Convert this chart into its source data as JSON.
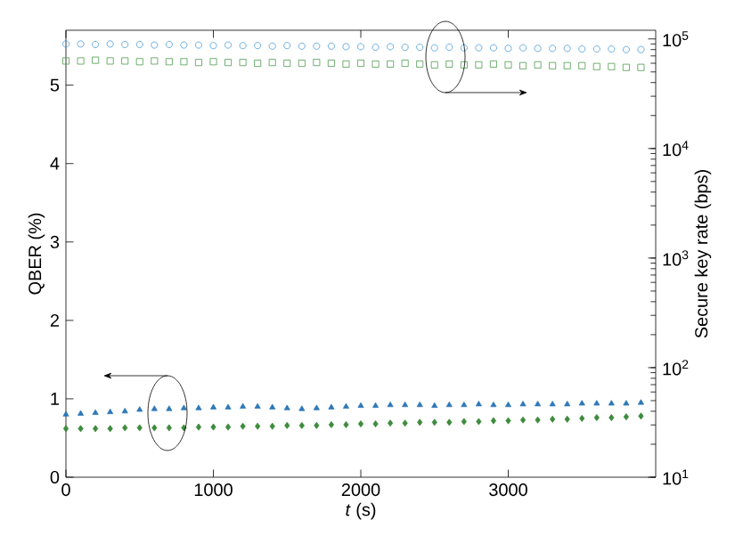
{
  "chart_data": {
    "type": "scatter",
    "xlabel": "*t* (s)",
    "ylabel": "QBER (%)",
    "y2label": "Secure key rate (bps)",
    "x": [
      0,
      100,
      200,
      300,
      400,
      500,
      600,
      700,
      800,
      900,
      1000,
      1100,
      1200,
      1300,
      1400,
      1500,
      1600,
      1700,
      1800,
      1900,
      2000,
      2100,
      2200,
      2300,
      2400,
      2500,
      2600,
      2700,
      2800,
      2900,
      3000,
      3100,
      3200,
      3300,
      3400,
      3500,
      3600,
      3700,
      3800,
      3900
    ],
    "series": [
      {
        "color": "#2e78b8",
        "marker": "triangle",
        "values": [
          0.8,
          0.81,
          0.82,
          0.83,
          0.84,
          0.86,
          0.87,
          0.87,
          0.88,
          0.88,
          0.89,
          0.89,
          0.9,
          0.9,
          0.89,
          0.88,
          0.87,
          0.88,
          0.89,
          0.9,
          0.91,
          0.91,
          0.92,
          0.92,
          0.92,
          0.91,
          0.92,
          0.92,
          0.93,
          0.92,
          0.92,
          0.93,
          0.93,
          0.93,
          0.93,
          0.94,
          0.94,
          0.94,
          0.94,
          0.95
        ]
      },
      {
        "color": "#3d8c3d",
        "marker": "diamond",
        "values": [
          0.62,
          0.62,
          0.62,
          0.62,
          0.63,
          0.63,
          0.63,
          0.63,
          0.63,
          0.64,
          0.64,
          0.64,
          0.65,
          0.65,
          0.65,
          0.66,
          0.66,
          0.66,
          0.67,
          0.67,
          0.68,
          0.68,
          0.69,
          0.69,
          0.7,
          0.7,
          0.7,
          0.71,
          0.71,
          0.72,
          0.72,
          0.73,
          0.73,
          0.74,
          0.74,
          0.75,
          0.76,
          0.76,
          0.77,
          0.78
        ]
      },
      {
        "color": "#4a9ad8",
        "marker": "circle",
        "axis": "y2",
        "values": [
          90000,
          90000,
          89000,
          90000,
          89000,
          89000,
          88000,
          89000,
          88000,
          88000,
          87000,
          88000,
          87000,
          87000,
          86000,
          87000,
          86000,
          86000,
          86000,
          85000,
          85000,
          84000,
          85000,
          84000,
          84000,
          83000,
          84000,
          83000,
          83000,
          83000,
          82000,
          83000,
          82000,
          82000,
          82000,
          81000,
          81000,
          81000,
          80000,
          80000
        ]
      },
      {
        "color": "#4e9a4e",
        "marker": "square",
        "axis": "y2",
        "values": [
          63000,
          63000,
          64000,
          63000,
          63000,
          62000,
          63000,
          62000,
          62000,
          61000,
          62000,
          61000,
          61000,
          60000,
          61000,
          60000,
          60000,
          61000,
          60000,
          59000,
          60000,
          59000,
          59000,
          60000,
          59000,
          58000,
          59000,
          58000,
          58000,
          59000,
          58000,
          57000,
          58000,
          57000,
          57000,
          57000,
          56000,
          56000,
          55000,
          55000
        ]
      }
    ],
    "xlim": [
      0,
      4000
    ],
    "xticks": [
      0,
      1000,
      2000,
      3000
    ],
    "ylim": [
      0,
      5.7
    ],
    "yticks": [
      0,
      1,
      2,
      3,
      4,
      5
    ],
    "log": "y2",
    "y2lim": [
      10,
      120000
    ],
    "y2ticks": [
      {
        "value": 10,
        "label": "10$^{1}$"
      },
      {
        "value": 100,
        "label": "10$^{2}$"
      },
      {
        "value": 1000,
        "label": "10$^{3}$"
      },
      {
        "value": 10000,
        "label": "10$^{4}$"
      },
      {
        "value": 100000,
        "label": "10$^{5}$"
      }
    ],
    "grid": false
  }
}
